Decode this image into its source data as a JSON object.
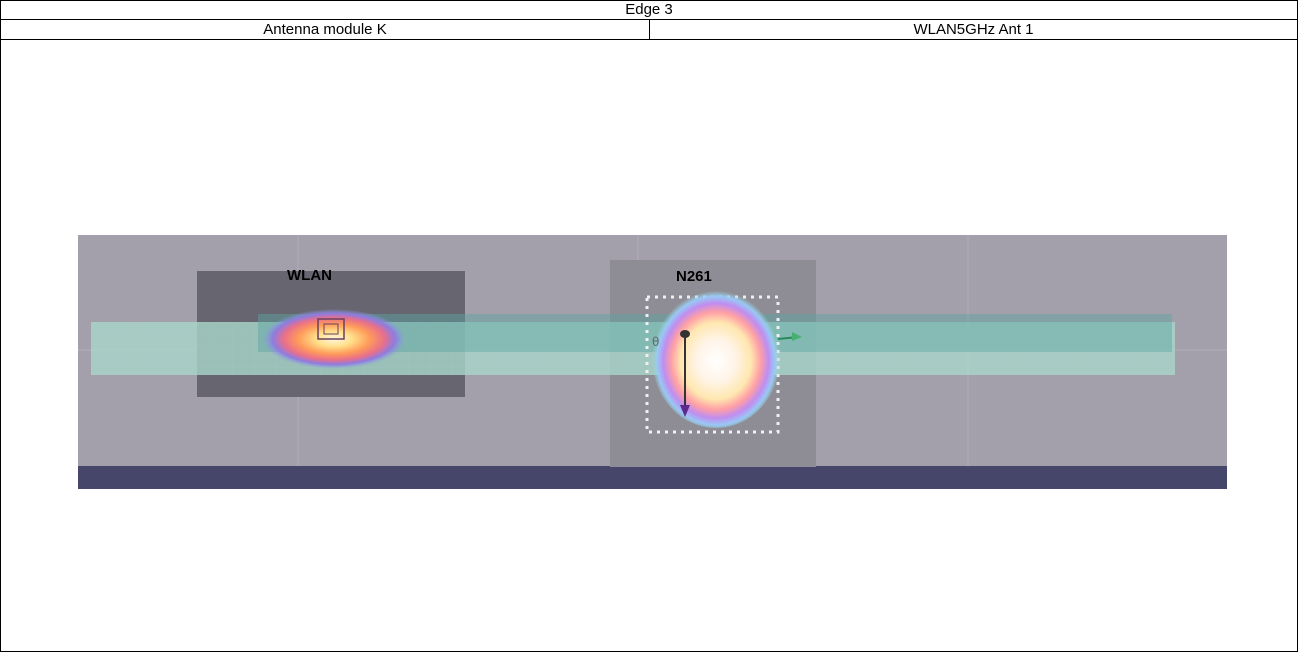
{
  "header": {
    "title": "Edge 3",
    "left_label": "Antenna module K",
    "right_label": "WLAN5GHz Ant 1"
  },
  "image": {
    "labels": {
      "wlan": "WLAN",
      "n261": "N261"
    },
    "theta_symbol": "θ"
  }
}
